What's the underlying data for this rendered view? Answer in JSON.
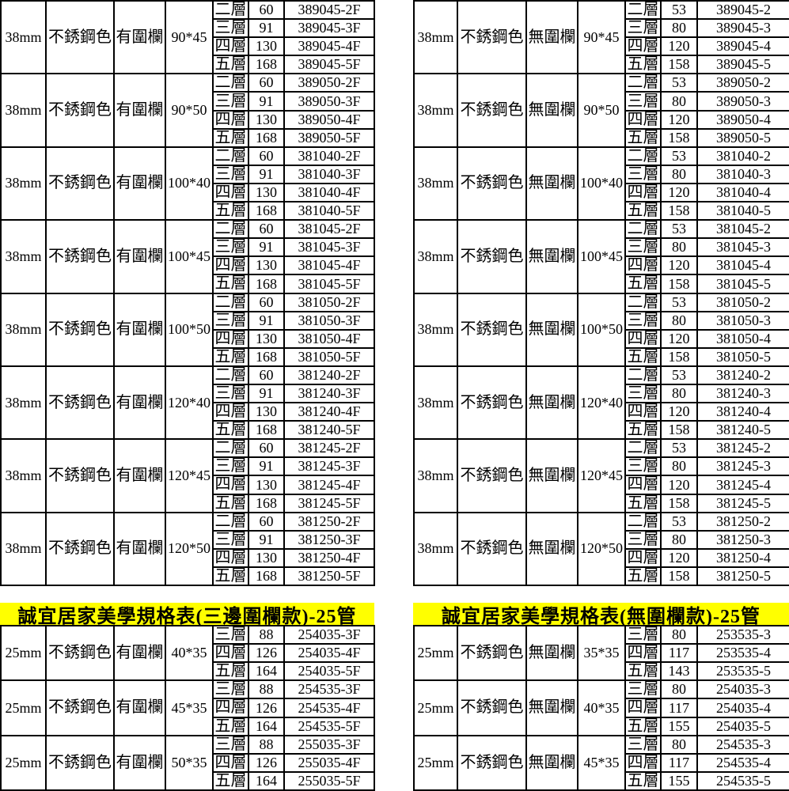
{
  "colors": {
    "header_bg": "#ffff00",
    "border": "#000000",
    "text": "#000000",
    "background": "#ffffff"
  },
  "tables": [
    {
      "id": "top-left",
      "title": null,
      "groups": [
        {
          "tube": "38mm",
          "color": "不銹鋼色",
          "fence": "有圍欄",
          "size": "90*45",
          "rows": [
            {
              "tier": "二層",
              "price": "60",
              "code": "389045-2F"
            },
            {
              "tier": "三層",
              "price": "91",
              "code": "389045-3F"
            },
            {
              "tier": "四層",
              "price": "130",
              "code": "389045-4F"
            },
            {
              "tier": "五層",
              "price": "168",
              "code": "389045-5F"
            }
          ]
        },
        {
          "tube": "38mm",
          "color": "不銹鋼色",
          "fence": "有圍欄",
          "size": "90*50",
          "rows": [
            {
              "tier": "二層",
              "price": "60",
              "code": "389050-2F"
            },
            {
              "tier": "三層",
              "price": "91",
              "code": "389050-3F"
            },
            {
              "tier": "四層",
              "price": "130",
              "code": "389050-4F"
            },
            {
              "tier": "五層",
              "price": "168",
              "code": "389050-5F"
            }
          ]
        },
        {
          "tube": "38mm",
          "color": "不銹鋼色",
          "fence": "有圍欄",
          "size": "100*40",
          "rows": [
            {
              "tier": "二層",
              "price": "60",
              "code": "381040-2F"
            },
            {
              "tier": "三層",
              "price": "91",
              "code": "381040-3F"
            },
            {
              "tier": "四層",
              "price": "130",
              "code": "381040-4F"
            },
            {
              "tier": "五層",
              "price": "168",
              "code": "381040-5F"
            }
          ]
        },
        {
          "tube": "38mm",
          "color": "不銹鋼色",
          "fence": "有圍欄",
          "size": "100*45",
          "rows": [
            {
              "tier": "二層",
              "price": "60",
              "code": "381045-2F"
            },
            {
              "tier": "三層",
              "price": "91",
              "code": "381045-3F"
            },
            {
              "tier": "四層",
              "price": "130",
              "code": "381045-4F"
            },
            {
              "tier": "五層",
              "price": "168",
              "code": "381045-5F"
            }
          ]
        },
        {
          "tube": "38mm",
          "color": "不銹鋼色",
          "fence": "有圍欄",
          "size": "100*50",
          "rows": [
            {
              "tier": "二層",
              "price": "60",
              "code": "381050-2F"
            },
            {
              "tier": "三層",
              "price": "91",
              "code": "381050-3F"
            },
            {
              "tier": "四層",
              "price": "130",
              "code": "381050-4F"
            },
            {
              "tier": "五層",
              "price": "168",
              "code": "381050-5F"
            }
          ]
        },
        {
          "tube": "38mm",
          "color": "不銹鋼色",
          "fence": "有圍欄",
          "size": "120*40",
          "rows": [
            {
              "tier": "二層",
              "price": "60",
              "code": "381240-2F"
            },
            {
              "tier": "三層",
              "price": "91",
              "code": "381240-3F"
            },
            {
              "tier": "四層",
              "price": "130",
              "code": "381240-4F"
            },
            {
              "tier": "五層",
              "price": "168",
              "code": "381240-5F"
            }
          ]
        },
        {
          "tube": "38mm",
          "color": "不銹鋼色",
          "fence": "有圍欄",
          "size": "120*45",
          "rows": [
            {
              "tier": "二層",
              "price": "60",
              "code": "381245-2F"
            },
            {
              "tier": "三層",
              "price": "91",
              "code": "381245-3F"
            },
            {
              "tier": "四層",
              "price": "130",
              "code": "381245-4F"
            },
            {
              "tier": "五層",
              "price": "168",
              "code": "381245-5F"
            }
          ]
        },
        {
          "tube": "38mm",
          "color": "不銹鋼色",
          "fence": "有圍欄",
          "size": "120*50",
          "rows": [
            {
              "tier": "二層",
              "price": "60",
              "code": "381250-2F"
            },
            {
              "tier": "三層",
              "price": "91",
              "code": "381250-3F"
            },
            {
              "tier": "四層",
              "price": "130",
              "code": "381250-4F"
            },
            {
              "tier": "五層",
              "price": "168",
              "code": "381250-5F"
            }
          ]
        }
      ]
    },
    {
      "id": "top-right",
      "title": null,
      "groups": [
        {
          "tube": "38mm",
          "color": "不銹鋼色",
          "fence": "無圍欄",
          "size": "90*45",
          "rows": [
            {
              "tier": "二層",
              "price": "53",
              "code": "389045-2"
            },
            {
              "tier": "三層",
              "price": "80",
              "code": "389045-3"
            },
            {
              "tier": "四層",
              "price": "120",
              "code": "389045-4"
            },
            {
              "tier": "五層",
              "price": "158",
              "code": "389045-5"
            }
          ]
        },
        {
          "tube": "38mm",
          "color": "不銹鋼色",
          "fence": "無圍欄",
          "size": "90*50",
          "rows": [
            {
              "tier": "二層",
              "price": "53",
              "code": "389050-2"
            },
            {
              "tier": "三層",
              "price": "80",
              "code": "389050-3"
            },
            {
              "tier": "四層",
              "price": "120",
              "code": "389050-4"
            },
            {
              "tier": "五層",
              "price": "158",
              "code": "389050-5"
            }
          ]
        },
        {
          "tube": "38mm",
          "color": "不銹鋼色",
          "fence": "無圍欄",
          "size": "100*40",
          "rows": [
            {
              "tier": "二層",
              "price": "53",
              "code": "381040-2"
            },
            {
              "tier": "三層",
              "price": "80",
              "code": "381040-3"
            },
            {
              "tier": "四層",
              "price": "120",
              "code": "381040-4"
            },
            {
              "tier": "五層",
              "price": "158",
              "code": "381040-5"
            }
          ]
        },
        {
          "tube": "38mm",
          "color": "不銹鋼色",
          "fence": "無圍欄",
          "size": "100*45",
          "rows": [
            {
              "tier": "二層",
              "price": "53",
              "code": "381045-2"
            },
            {
              "tier": "三層",
              "price": "80",
              "code": "381045-3"
            },
            {
              "tier": "四層",
              "price": "120",
              "code": "381045-4"
            },
            {
              "tier": "五層",
              "price": "158",
              "code": "381045-5"
            }
          ]
        },
        {
          "tube": "38mm",
          "color": "不銹鋼色",
          "fence": "無圍欄",
          "size": "100*50",
          "rows": [
            {
              "tier": "二層",
              "price": "53",
              "code": "381050-2"
            },
            {
              "tier": "三層",
              "price": "80",
              "code": "381050-3"
            },
            {
              "tier": "四層",
              "price": "120",
              "code": "381050-4"
            },
            {
              "tier": "五層",
              "price": "158",
              "code": "381050-5"
            }
          ]
        },
        {
          "tube": "38mm",
          "color": "不銹鋼色",
          "fence": "無圍欄",
          "size": "120*40",
          "rows": [
            {
              "tier": "二層",
              "price": "53",
              "code": "381240-2"
            },
            {
              "tier": "三層",
              "price": "80",
              "code": "381240-3"
            },
            {
              "tier": "四層",
              "price": "120",
              "code": "381240-4"
            },
            {
              "tier": "五層",
              "price": "158",
              "code": "381240-5"
            }
          ]
        },
        {
          "tube": "38mm",
          "color": "不銹鋼色",
          "fence": "無圍欄",
          "size": "120*45",
          "rows": [
            {
              "tier": "二層",
              "price": "53",
              "code": "381245-2"
            },
            {
              "tier": "三層",
              "price": "80",
              "code": "381245-3"
            },
            {
              "tier": "四層",
              "price": "120",
              "code": "381245-4"
            },
            {
              "tier": "五層",
              "price": "158",
              "code": "381245-5"
            }
          ]
        },
        {
          "tube": "38mm",
          "color": "不銹鋼色",
          "fence": "無圍欄",
          "size": "120*50",
          "rows": [
            {
              "tier": "二層",
              "price": "53",
              "code": "381250-2"
            },
            {
              "tier": "三層",
              "price": "80",
              "code": "381250-3"
            },
            {
              "tier": "四層",
              "price": "120",
              "code": "381250-4"
            },
            {
              "tier": "五層",
              "price": "158",
              "code": "381250-5"
            }
          ]
        }
      ]
    },
    {
      "id": "bottom-left",
      "title": "誠宜居家美學規格表(三邊圍欄款)-25管",
      "groups": [
        {
          "tube": "25mm",
          "color": "不銹鋼色",
          "fence": "有圍欄",
          "size": "40*35",
          "rows": [
            {
              "tier": "三層",
              "price": "88",
              "code": "254035-3F"
            },
            {
              "tier": "四層",
              "price": "126",
              "code": "254035-4F"
            },
            {
              "tier": "五層",
              "price": "164",
              "code": "254035-5F"
            }
          ]
        },
        {
          "tube": "25mm",
          "color": "不銹鋼色",
          "fence": "有圍欄",
          "size": "45*35",
          "rows": [
            {
              "tier": "三層",
              "price": "88",
              "code": "254535-3F"
            },
            {
              "tier": "四層",
              "price": "126",
              "code": "254535-4F"
            },
            {
              "tier": "五層",
              "price": "164",
              "code": "254535-5F"
            }
          ]
        },
        {
          "tube": "25mm",
          "color": "不銹鋼色",
          "fence": "有圍欄",
          "size": "50*35",
          "rows": [
            {
              "tier": "三層",
              "price": "88",
              "code": "255035-3F"
            },
            {
              "tier": "四層",
              "price": "126",
              "code": "255035-4F"
            },
            {
              "tier": "五層",
              "price": "164",
              "code": "255035-5F"
            }
          ]
        }
      ]
    },
    {
      "id": "bottom-right",
      "title": "誠宜居家美學規格表(無圍欄款)-25管",
      "groups": [
        {
          "tube": "25mm",
          "color": "不銹鋼色",
          "fence": "無圍欄",
          "size": "35*35",
          "rows": [
            {
              "tier": "三層",
              "price": "80",
              "code": "253535-3"
            },
            {
              "tier": "四層",
              "price": "117",
              "code": "253535-4"
            },
            {
              "tier": "五層",
              "price": "143",
              "code": "253535-5"
            }
          ]
        },
        {
          "tube": "25mm",
          "color": "不銹鋼色",
          "fence": "無圍欄",
          "size": "40*35",
          "rows": [
            {
              "tier": "三層",
              "price": "80",
              "code": "254035-3"
            },
            {
              "tier": "四層",
              "price": "117",
              "code": "254035-4"
            },
            {
              "tier": "五層",
              "price": "155",
              "code": "254035-5"
            }
          ]
        },
        {
          "tube": "25mm",
          "color": "不銹鋼色",
          "fence": "無圍欄",
          "size": "45*35",
          "rows": [
            {
              "tier": "三層",
              "price": "80",
              "code": "254535-3"
            },
            {
              "tier": "四層",
              "price": "117",
              "code": "254535-4"
            },
            {
              "tier": "五層",
              "price": "155",
              "code": "254535-5"
            }
          ]
        }
      ]
    }
  ]
}
